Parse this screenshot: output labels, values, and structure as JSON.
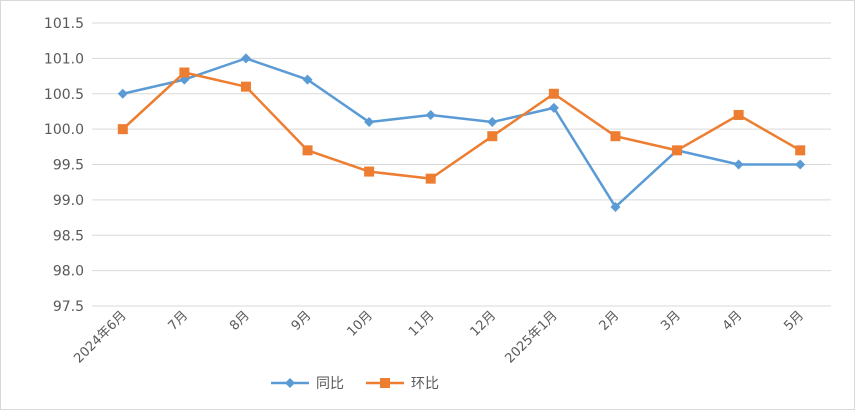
{
  "chart_data": {
    "type": "line",
    "categories": [
      "2024年6月",
      "7月",
      "8月",
      "9月",
      "10月",
      "11月",
      "12月",
      "2025年1月",
      "2月",
      "3月",
      "4月",
      "5月"
    ],
    "series": [
      {
        "name": "同比",
        "color": "#5b9bd5",
        "marker": "diamond",
        "values": [
          100.5,
          100.7,
          101.0,
          100.7,
          100.1,
          100.2,
          100.1,
          100.3,
          98.9,
          99.7,
          99.5,
          99.5
        ]
      },
      {
        "name": "环比",
        "color": "#ed7d31",
        "marker": "square",
        "values": [
          100.0,
          100.8,
          100.6,
          99.7,
          99.4,
          99.3,
          99.9,
          100.5,
          99.9,
          99.7,
          100.2,
          99.7
        ]
      }
    ],
    "ylim": [
      97.5,
      101.5
    ],
    "yticks": [
      "97.5",
      "98.0",
      "98.5",
      "99.0",
      "99.5",
      "100.0",
      "100.5",
      "101.0",
      "101.5"
    ],
    "grid": true,
    "legend_position": "bottom"
  }
}
